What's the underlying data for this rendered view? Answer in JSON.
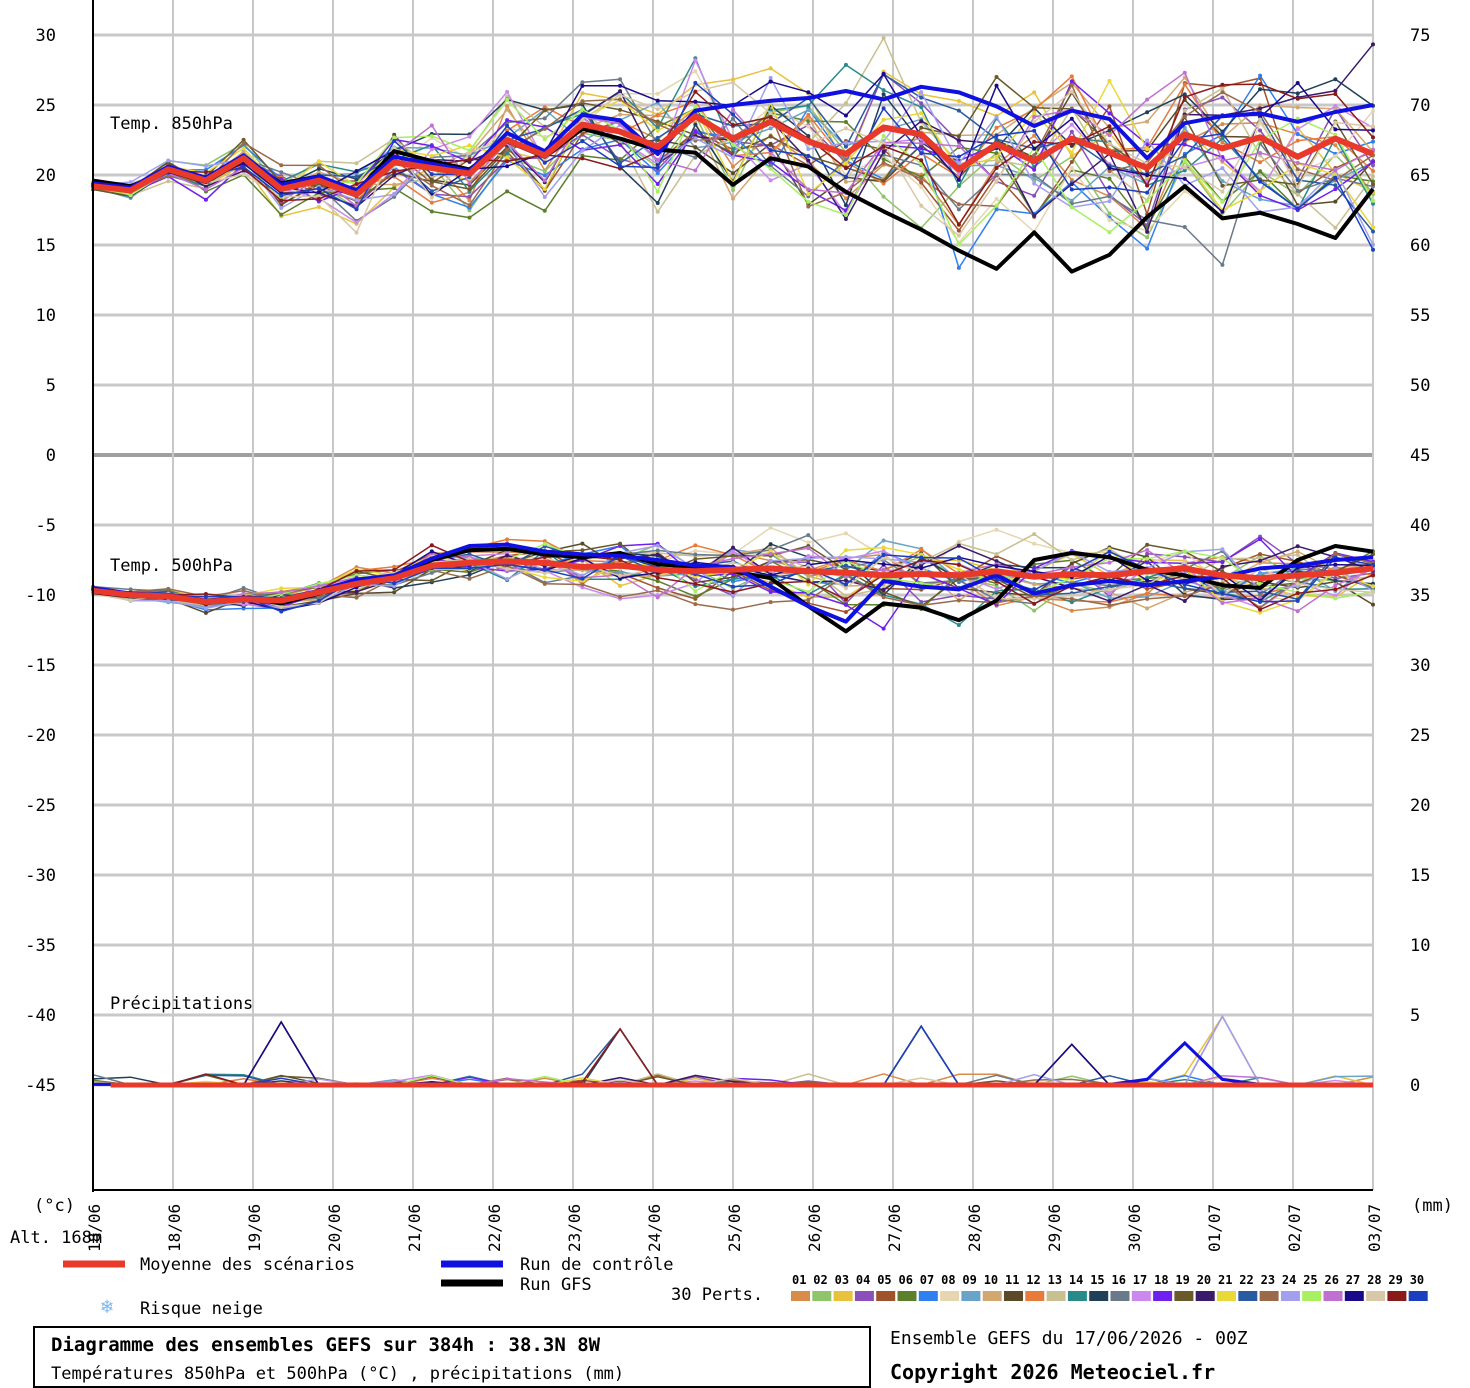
{
  "chart_data": {
    "type": "line",
    "title": "Diagramme des ensembles GEFS sur 384h : 38.3N 8W",
    "subtitle": "Températures 850hPa et 500hPa (°C) , précipitations (mm)",
    "left_axis": {
      "unit_label": "(°c)",
      "ylim": [
        -50,
        30
      ],
      "ticks": [
        "30",
        "25",
        "20",
        "15",
        "10",
        "5",
        "0",
        "-5",
        "-10",
        "-15",
        "-20",
        "-25",
        "-30",
        "-35",
        "-40",
        "-45"
      ],
      "tick_values": [
        30,
        25,
        20,
        15,
        10,
        5,
        0,
        -5,
        -10,
        -15,
        -20,
        -25,
        -30,
        -35,
        -40,
        -45
      ]
    },
    "right_axis": {
      "unit_label": "(mm)",
      "ticks": [
        "75",
        "70",
        "65",
        "60",
        "55",
        "50",
        "45",
        "40",
        "35",
        "30",
        "25",
        "20",
        "15",
        "10",
        "5",
        "0"
      ]
    },
    "altitude_label": "Alt. 168m",
    "x_dates": [
      "18/06",
      "18/06",
      "19/06",
      "20/06",
      "21/06",
      "22/06",
      "23/06",
      "24/06",
      "25/06",
      "26/06",
      "27/06",
      "28/06",
      "29/06",
      "30/06",
      "01/07",
      "02/07",
      "03/07"
    ],
    "panel_labels": {
      "t850": "Temp. 850hPa",
      "t500": "Temp. 500hPa",
      "precip": "Précipitations"
    },
    "legend": {
      "mean": "Moyenne des scénarios",
      "control": "Run de contrôle",
      "gfs": "Run GFS",
      "snow": "Risque neige",
      "perts": "30 Perts."
    },
    "legend_colors": {
      "mean": "#e8392a",
      "control": "#1010e0",
      "gfs": "#000000",
      "snow": "#7ab8f0"
    },
    "members": [
      "01",
      "02",
      "03",
      "04",
      "05",
      "06",
      "07",
      "08",
      "09",
      "10",
      "11",
      "12",
      "13",
      "14",
      "15",
      "16",
      "17",
      "18",
      "19",
      "20",
      "21",
      "22",
      "23",
      "24",
      "25",
      "26",
      "27",
      "28",
      "29",
      "30"
    ],
    "member_colors": [
      "#d98c4a",
      "#8fc46a",
      "#e8c23a",
      "#8a4fb8",
      "#a0522d",
      "#5b7f2a",
      "#2f7ff0",
      "#e6d6b0",
      "#6aa3c8",
      "#d2a870",
      "#5a4a2a",
      "#e87a3a",
      "#c8c090",
      "#2a8a8a",
      "#20405a",
      "#6a7a8a",
      "#cc88ee",
      "#7020ee",
      "#6a5a2a",
      "#3a1a6a",
      "#e8d838",
      "#2a5aa0",
      "#9a6a4a",
      "#a0a0ee",
      "#a8f060",
      "#c070d0",
      "#1a0a8a",
      "#d8c8a8",
      "#8a1a1a",
      "#1a40c0"
    ],
    "series": {
      "mean_850": [
        19.2,
        18.9,
        20.4,
        19.6,
        21.2,
        19.0,
        19.6,
        18.6,
        20.9,
        20.5,
        20.1,
        22.5,
        21.4,
        23.6,
        23.1,
        22.0,
        24.2,
        22.6,
        23.8,
        22.4,
        21.5,
        23.4,
        22.9,
        20.4,
        22.2,
        21.0,
        22.6,
        21.6,
        20.5,
        22.9,
        21.9,
        22.7,
        21.3,
        22.6,
        21.5
      ],
      "control_850": [
        19.4,
        19.1,
        20.6,
        19.8,
        21.4,
        19.3,
        19.9,
        18.9,
        21.3,
        20.8,
        20.3,
        23.0,
        21.7,
        24.3,
        23.9,
        21.5,
        24.6,
        25.0,
        25.3,
        25.5,
        26.0,
        25.4,
        26.3,
        25.9,
        24.9,
        23.5,
        24.6,
        24.0,
        21.2,
        23.7,
        24.2,
        24.4,
        23.8,
        24.5,
        25.0
      ],
      "gfs_850": [
        19.6,
        19.2,
        20.3,
        19.5,
        21.1,
        19.4,
        19.9,
        18.8,
        21.7,
        21.0,
        20.4,
        22.4,
        21.3,
        23.3,
        22.6,
        21.8,
        21.6,
        19.3,
        21.2,
        20.6,
        18.8,
        17.4,
        16.1,
        14.6,
        13.3,
        15.9,
        13.1,
        14.3,
        17.0,
        19.2,
        16.9,
        17.3,
        16.5,
        15.5,
        19.0
      ],
      "mean_500": [
        -9.7,
        -10.0,
        -10.1,
        -10.5,
        -10.3,
        -10.4,
        -9.8,
        -9.2,
        -8.8,
        -7.9,
        -7.7,
        -7.6,
        -7.7,
        -8.0,
        -7.9,
        -8.2,
        -8.3,
        -8.2,
        -8.1,
        -8.3,
        -8.4,
        -8.6,
        -8.5,
        -8.6,
        -8.3,
        -8.7,
        -8.5,
        -8.6,
        -8.3,
        -8.1,
        -8.6,
        -8.8,
        -8.6,
        -8.4,
        -8.1
      ],
      "control_500": [
        -9.5,
        -9.9,
        -10.0,
        -10.4,
        -10.2,
        -10.3,
        -9.7,
        -8.9,
        -8.6,
        -7.4,
        -6.5,
        -6.4,
        -6.9,
        -7.1,
        -7.2,
        -7.5,
        -7.9,
        -8.0,
        -9.4,
        -10.8,
        -11.9,
        -9.0,
        -9.4,
        -9.6,
        -8.6,
        -9.9,
        -9.3,
        -9.0,
        -9.3,
        -9.0,
        -8.7,
        -8.1,
        -7.9,
        -7.5,
        -7.3
      ],
      "gfs_500": [
        -9.8,
        -10.1,
        -10.0,
        -10.6,
        -10.2,
        -10.6,
        -9.9,
        -9.0,
        -8.7,
        -7.5,
        -6.8,
        -6.7,
        -7.1,
        -7.3,
        -7.0,
        -7.8,
        -8.0,
        -8.3,
        -8.8,
        -10.8,
        -12.6,
        -10.6,
        -10.9,
        -11.8,
        -10.4,
        -7.5,
        -7.0,
        -7.3,
        -8.2,
        -8.6,
        -9.3,
        -9.5,
        -7.5,
        -6.5,
        -6.9
      ]
    },
    "precip_spikes": [
      {
        "x_index": 5,
        "mm": 4.5
      },
      {
        "x_index": 14,
        "mm": 4.0
      },
      {
        "x_index": 22,
        "mm": 4.2
      },
      {
        "x_index": 26,
        "mm": 2.9
      },
      {
        "x_index": 30,
        "mm": 4.9
      }
    ],
    "grid": true
  },
  "footer": {
    "title": "Diagramme des ensembles GEFS sur 384h : 38.3N 8W",
    "subtitle": "Températures 850hPa et 500hPa (°C) , précipitations (mm)",
    "ensemble_info": "Ensemble GEFS du 17/06/2026 - 00Z",
    "copyright": "Copyright 2026 Meteociel.fr"
  }
}
